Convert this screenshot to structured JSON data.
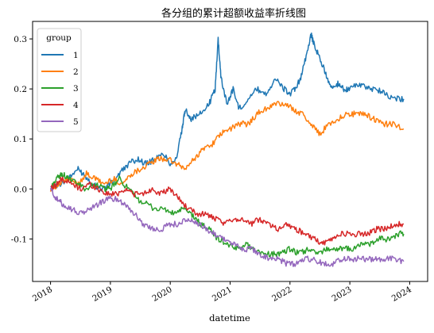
{
  "chart_data": {
    "type": "line",
    "title": "各分组的累计超额收益率折线图",
    "xlabel": "datetime",
    "ylabel": "",
    "x_ticks": [
      "2018",
      "2019",
      "2020",
      "2021",
      "2022",
      "2023",
      "2024"
    ],
    "y_ticks": [
      "-0.1",
      "0.0",
      "0.1",
      "0.2",
      "0.3"
    ],
    "y_tick_values": [
      -0.1,
      0.0,
      0.1,
      0.2,
      0.3
    ],
    "xlim": [
      2017.7,
      2024.3
    ],
    "ylim": [
      -0.185,
      0.335
    ],
    "grid": false,
    "legend": {
      "title": "group",
      "placement": "top-left"
    },
    "series": [
      {
        "name": "1",
        "color": "#1f77b4",
        "x": [
          2018.0,
          2018.15,
          2018.3,
          2018.45,
          2018.55,
          2018.7,
          2018.85,
          2019.0,
          2019.15,
          2019.3,
          2019.45,
          2019.6,
          2019.75,
          2019.9,
          2020.0,
          2020.1,
          2020.2,
          2020.25,
          2020.35,
          2020.5,
          2020.65,
          2020.75,
          2020.8,
          2020.85,
          2020.95,
          2021.05,
          2021.15,
          2021.3,
          2021.45,
          2021.6,
          2021.75,
          2021.9,
          2022.0,
          2022.1,
          2022.2,
          2022.3,
          2022.35,
          2022.4,
          2022.5,
          2022.6,
          2022.7,
          2022.8,
          2022.9,
          2023.0,
          2023.15,
          2023.3,
          2023.45,
          2023.6,
          2023.75,
          2023.9
        ],
        "y": [
          0.0,
          0.01,
          0.02,
          0.04,
          0.03,
          0.01,
          0.0,
          0.01,
          0.03,
          0.05,
          0.06,
          0.05,
          0.06,
          0.07,
          0.05,
          0.06,
          0.12,
          0.16,
          0.14,
          0.15,
          0.17,
          0.2,
          0.3,
          0.22,
          0.17,
          0.2,
          0.16,
          0.18,
          0.2,
          0.19,
          0.22,
          0.2,
          0.19,
          0.2,
          0.23,
          0.28,
          0.31,
          0.29,
          0.26,
          0.23,
          0.2,
          0.21,
          0.2,
          0.2,
          0.21,
          0.2,
          0.2,
          0.19,
          0.18,
          0.18
        ]
      },
      {
        "name": "2",
        "color": "#ff7f0e",
        "x": [
          2018.0,
          2018.15,
          2018.3,
          2018.45,
          2018.6,
          2018.75,
          2018.9,
          2019.05,
          2019.2,
          2019.35,
          2019.5,
          2019.65,
          2019.8,
          2019.95,
          2020.1,
          2020.25,
          2020.4,
          2020.55,
          2020.7,
          2020.85,
          2021.0,
          2021.15,
          2021.3,
          2021.45,
          2021.6,
          2021.75,
          2021.9,
          2022.05,
          2022.2,
          2022.35,
          2022.5,
          2022.65,
          2022.8,
          2022.95,
          2023.1,
          2023.25,
          2023.4,
          2023.55,
          2023.7,
          2023.9
        ],
        "y": [
          0.0,
          0.01,
          0.02,
          0.01,
          0.03,
          0.02,
          0.01,
          0.02,
          0.01,
          0.03,
          0.04,
          0.05,
          0.06,
          0.06,
          0.05,
          0.04,
          0.06,
          0.08,
          0.09,
          0.11,
          0.12,
          0.13,
          0.13,
          0.15,
          0.16,
          0.17,
          0.17,
          0.16,
          0.15,
          0.13,
          0.11,
          0.13,
          0.14,
          0.15,
          0.15,
          0.15,
          0.14,
          0.13,
          0.13,
          0.12
        ]
      },
      {
        "name": "3",
        "color": "#2ca02c",
        "x": [
          2018.0,
          2018.1,
          2018.2,
          2018.3,
          2018.45,
          2018.6,
          2018.75,
          2018.9,
          2019.0,
          2019.15,
          2019.3,
          2019.45,
          2019.6,
          2019.75,
          2019.9,
          2020.05,
          2020.2,
          2020.35,
          2020.5,
          2020.65,
          2020.8,
          2020.95,
          2021.1,
          2021.25,
          2021.4,
          2021.55,
          2021.7,
          2021.85,
          2022.0,
          2022.15,
          2022.3,
          2022.45,
          2022.6,
          2022.75,
          2022.9,
          2023.05,
          2023.2,
          2023.35,
          2023.5,
          2023.65,
          2023.8,
          2023.9
        ],
        "y": [
          0.0,
          0.02,
          0.03,
          0.02,
          0.01,
          0.0,
          0.01,
          0.0,
          0.0,
          0.02,
          0.0,
          -0.02,
          -0.03,
          -0.04,
          -0.04,
          -0.05,
          -0.04,
          -0.05,
          -0.07,
          -0.08,
          -0.1,
          -0.11,
          -0.12,
          -0.11,
          -0.12,
          -0.13,
          -0.13,
          -0.13,
          -0.12,
          -0.13,
          -0.12,
          -0.13,
          -0.12,
          -0.12,
          -0.12,
          -0.12,
          -0.11,
          -0.11,
          -0.1,
          -0.1,
          -0.09,
          -0.09
        ]
      },
      {
        "name": "4",
        "color": "#d62728",
        "x": [
          2018.0,
          2018.1,
          2018.2,
          2018.35,
          2018.5,
          2018.65,
          2018.8,
          2018.95,
          2019.1,
          2019.25,
          2019.4,
          2019.55,
          2019.7,
          2019.85,
          2020.0,
          2020.15,
          2020.3,
          2020.45,
          2020.6,
          2020.75,
          2020.9,
          2021.05,
          2021.2,
          2021.35,
          2021.5,
          2021.65,
          2021.8,
          2021.95,
          2022.1,
          2022.25,
          2022.4,
          2022.55,
          2022.7,
          2022.85,
          2023.0,
          2023.15,
          2023.3,
          2023.45,
          2023.6,
          2023.75,
          2023.9
        ],
        "y": [
          0.0,
          0.01,
          0.02,
          0.01,
          0.0,
          0.01,
          0.0,
          -0.01,
          -0.01,
          0.0,
          -0.01,
          -0.01,
          0.0,
          -0.01,
          0.0,
          -0.02,
          -0.04,
          -0.05,
          -0.05,
          -0.06,
          -0.07,
          -0.06,
          -0.06,
          -0.07,
          -0.06,
          -0.07,
          -0.08,
          -0.07,
          -0.08,
          -0.09,
          -0.1,
          -0.11,
          -0.1,
          -0.09,
          -0.09,
          -0.09,
          -0.09,
          -0.08,
          -0.08,
          -0.07,
          -0.07
        ]
      },
      {
        "name": "5",
        "color": "#9467bd",
        "x": [
          2018.0,
          2018.1,
          2018.2,
          2018.35,
          2018.5,
          2018.65,
          2018.8,
          2018.95,
          2019.1,
          2019.25,
          2019.4,
          2019.55,
          2019.7,
          2019.85,
          2020.0,
          2020.15,
          2020.3,
          2020.45,
          2020.6,
          2020.75,
          2020.9,
          2021.05,
          2021.2,
          2021.35,
          2021.5,
          2021.65,
          2021.8,
          2021.95,
          2022.1,
          2022.25,
          2022.4,
          2022.55,
          2022.7,
          2022.85,
          2023.0,
          2023.15,
          2023.3,
          2023.45,
          2023.6,
          2023.75,
          2023.9
        ],
        "y": [
          0.0,
          -0.02,
          -0.03,
          -0.04,
          -0.05,
          -0.04,
          -0.03,
          -0.02,
          -0.02,
          -0.03,
          -0.05,
          -0.07,
          -0.08,
          -0.08,
          -0.07,
          -0.07,
          -0.06,
          -0.07,
          -0.08,
          -0.09,
          -0.1,
          -0.11,
          -0.12,
          -0.12,
          -0.13,
          -0.14,
          -0.14,
          -0.15,
          -0.15,
          -0.14,
          -0.14,
          -0.15,
          -0.15,
          -0.14,
          -0.14,
          -0.14,
          -0.14,
          -0.14,
          -0.14,
          -0.14,
          -0.145
        ]
      }
    ]
  }
}
